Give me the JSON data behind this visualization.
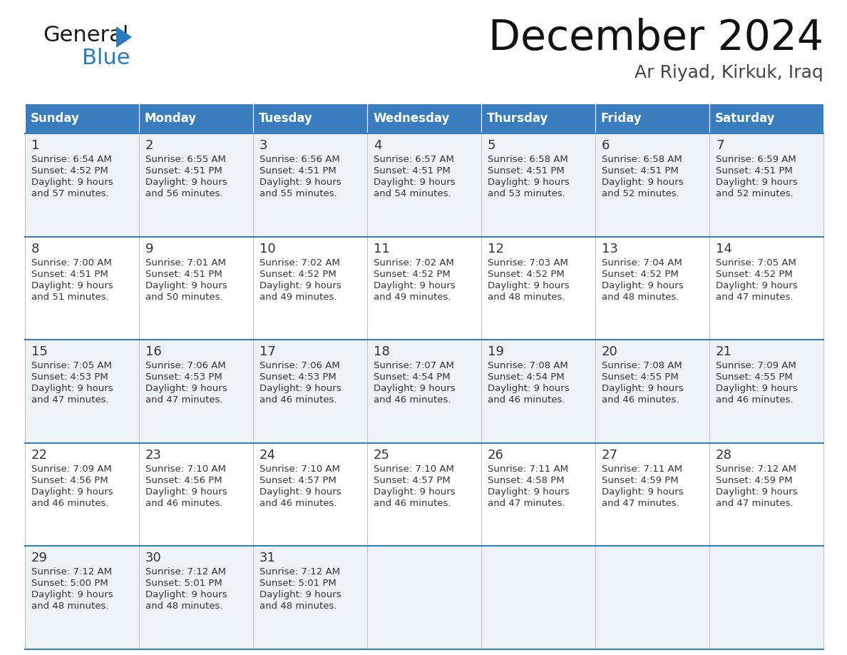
{
  "title": "December 2024",
  "subtitle": "Ar Riyad, Kirkuk, Iraq",
  "header_bg_color": "#3a7dbf",
  "header_text_color": "#ffffff",
  "day_names": [
    "Sunday",
    "Monday",
    "Tuesday",
    "Wednesday",
    "Thursday",
    "Friday",
    "Saturday"
  ],
  "row_bg_even": "#edf2f7",
  "row_bg_odd": "#ffffff",
  "border_color": "#3a7dbf",
  "separator_color": "#aaaaaa",
  "text_color": "#333333",
  "days": [
    {
      "day": 1,
      "col": 0,
      "row": 0,
      "sunrise": "6:54 AM",
      "sunset": "4:52 PM",
      "daylight": "9 hours and 57 minutes"
    },
    {
      "day": 2,
      "col": 1,
      "row": 0,
      "sunrise": "6:55 AM",
      "sunset": "4:51 PM",
      "daylight": "9 hours and 56 minutes"
    },
    {
      "day": 3,
      "col": 2,
      "row": 0,
      "sunrise": "6:56 AM",
      "sunset": "4:51 PM",
      "daylight": "9 hours and 55 minutes"
    },
    {
      "day": 4,
      "col": 3,
      "row": 0,
      "sunrise": "6:57 AM",
      "sunset": "4:51 PM",
      "daylight": "9 hours and 54 minutes"
    },
    {
      "day": 5,
      "col": 4,
      "row": 0,
      "sunrise": "6:58 AM",
      "sunset": "4:51 PM",
      "daylight": "9 hours and 53 minutes"
    },
    {
      "day": 6,
      "col": 5,
      "row": 0,
      "sunrise": "6:58 AM",
      "sunset": "4:51 PM",
      "daylight": "9 hours and 52 minutes"
    },
    {
      "day": 7,
      "col": 6,
      "row": 0,
      "sunrise": "6:59 AM",
      "sunset": "4:51 PM",
      "daylight": "9 hours and 52 minutes"
    },
    {
      "day": 8,
      "col": 0,
      "row": 1,
      "sunrise": "7:00 AM",
      "sunset": "4:51 PM",
      "daylight": "9 hours and 51 minutes"
    },
    {
      "day": 9,
      "col": 1,
      "row": 1,
      "sunrise": "7:01 AM",
      "sunset": "4:51 PM",
      "daylight": "9 hours and 50 minutes"
    },
    {
      "day": 10,
      "col": 2,
      "row": 1,
      "sunrise": "7:02 AM",
      "sunset": "4:52 PM",
      "daylight": "9 hours and 49 minutes"
    },
    {
      "day": 11,
      "col": 3,
      "row": 1,
      "sunrise": "7:02 AM",
      "sunset": "4:52 PM",
      "daylight": "9 hours and 49 minutes"
    },
    {
      "day": 12,
      "col": 4,
      "row": 1,
      "sunrise": "7:03 AM",
      "sunset": "4:52 PM",
      "daylight": "9 hours and 48 minutes"
    },
    {
      "day": 13,
      "col": 5,
      "row": 1,
      "sunrise": "7:04 AM",
      "sunset": "4:52 PM",
      "daylight": "9 hours and 48 minutes"
    },
    {
      "day": 14,
      "col": 6,
      "row": 1,
      "sunrise": "7:05 AM",
      "sunset": "4:52 PM",
      "daylight": "9 hours and 47 minutes"
    },
    {
      "day": 15,
      "col": 0,
      "row": 2,
      "sunrise": "7:05 AM",
      "sunset": "4:53 PM",
      "daylight": "9 hours and 47 minutes"
    },
    {
      "day": 16,
      "col": 1,
      "row": 2,
      "sunrise": "7:06 AM",
      "sunset": "4:53 PM",
      "daylight": "9 hours and 47 minutes"
    },
    {
      "day": 17,
      "col": 2,
      "row": 2,
      "sunrise": "7:06 AM",
      "sunset": "4:53 PM",
      "daylight": "9 hours and 46 minutes"
    },
    {
      "day": 18,
      "col": 3,
      "row": 2,
      "sunrise": "7:07 AM",
      "sunset": "4:54 PM",
      "daylight": "9 hours and 46 minutes"
    },
    {
      "day": 19,
      "col": 4,
      "row": 2,
      "sunrise": "7:08 AM",
      "sunset": "4:54 PM",
      "daylight": "9 hours and 46 minutes"
    },
    {
      "day": 20,
      "col": 5,
      "row": 2,
      "sunrise": "7:08 AM",
      "sunset": "4:55 PM",
      "daylight": "9 hours and 46 minutes"
    },
    {
      "day": 21,
      "col": 6,
      "row": 2,
      "sunrise": "7:09 AM",
      "sunset": "4:55 PM",
      "daylight": "9 hours and 46 minutes"
    },
    {
      "day": 22,
      "col": 0,
      "row": 3,
      "sunrise": "7:09 AM",
      "sunset": "4:56 PM",
      "daylight": "9 hours and 46 minutes"
    },
    {
      "day": 23,
      "col": 1,
      "row": 3,
      "sunrise": "7:10 AM",
      "sunset": "4:56 PM",
      "daylight": "9 hours and 46 minutes"
    },
    {
      "day": 24,
      "col": 2,
      "row": 3,
      "sunrise": "7:10 AM",
      "sunset": "4:57 PM",
      "daylight": "9 hours and 46 minutes"
    },
    {
      "day": 25,
      "col": 3,
      "row": 3,
      "sunrise": "7:10 AM",
      "sunset": "4:57 PM",
      "daylight": "9 hours and 46 minutes"
    },
    {
      "day": 26,
      "col": 4,
      "row": 3,
      "sunrise": "7:11 AM",
      "sunset": "4:58 PM",
      "daylight": "9 hours and 47 minutes"
    },
    {
      "day": 27,
      "col": 5,
      "row": 3,
      "sunrise": "7:11 AM",
      "sunset": "4:59 PM",
      "daylight": "9 hours and 47 minutes"
    },
    {
      "day": 28,
      "col": 6,
      "row": 3,
      "sunrise": "7:12 AM",
      "sunset": "4:59 PM",
      "daylight": "9 hours and 47 minutes"
    },
    {
      "day": 29,
      "col": 0,
      "row": 4,
      "sunrise": "7:12 AM",
      "sunset": "5:00 PM",
      "daylight": "9 hours and 48 minutes"
    },
    {
      "day": 30,
      "col": 1,
      "row": 4,
      "sunrise": "7:12 AM",
      "sunset": "5:01 PM",
      "daylight": "9 hours and 48 minutes"
    },
    {
      "day": 31,
      "col": 2,
      "row": 4,
      "sunrise": "7:12 AM",
      "sunset": "5:01 PM",
      "daylight": "9 hours and 48 minutes"
    }
  ],
  "num_weeks": 5,
  "logo_general_color": "#1a1a1a",
  "logo_blue_color": "#2a7abf",
  "logo_triangle_color": "#2a7abf"
}
